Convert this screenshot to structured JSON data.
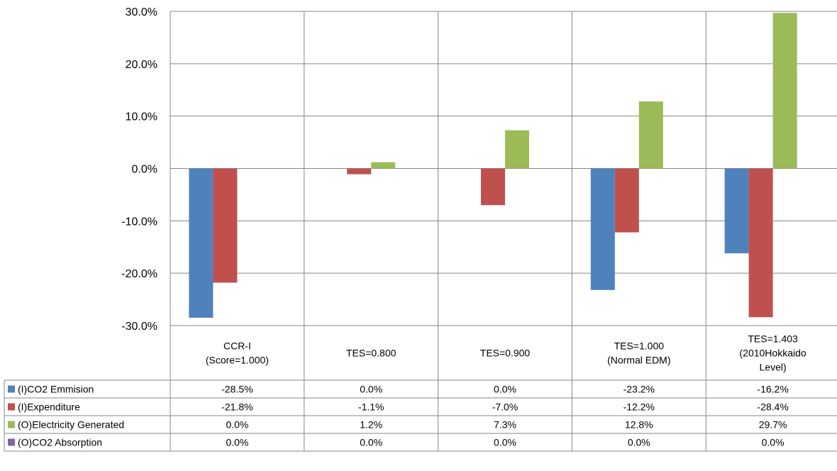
{
  "chart_data": {
    "type": "bar",
    "categories": [
      [
        "CCR-I",
        "(Score=1.000)"
      ],
      [
        "TES=0.800"
      ],
      [
        "TES=0.900"
      ],
      [
        "TES=1.000",
        "(Normal EDM)"
      ],
      [
        "TES=1.403",
        "(2010Hokkaido",
        "Level)"
      ]
    ],
    "ylim": [
      -30,
      30
    ],
    "yticks": [
      30,
      20,
      10,
      0,
      -10,
      -20,
      -30
    ],
    "ytick_labels": [
      "30.0%",
      "20.0%",
      "10.0%",
      "0.0%",
      "-10.0%",
      "-20.0%",
      "-30.0%"
    ],
    "grid": true,
    "legend_placement": "data-table",
    "series": [
      {
        "name": "(I)CO2 Emmision",
        "color": "#4f81bd",
        "values": [
          -28.5,
          0.0,
          0.0,
          -23.2,
          -16.2
        ],
        "labels": [
          "-28.5%",
          "0.0%",
          "0.0%",
          "-23.2%",
          "-16.2%"
        ]
      },
      {
        "name": "(I)Expenditure",
        "color": "#c0504d",
        "values": [
          -21.8,
          -1.1,
          -7.0,
          -12.2,
          -28.4
        ],
        "labels": [
          "-21.8%",
          "-1.1%",
          "-7.0%",
          "-12.2%",
          "-28.4%"
        ]
      },
      {
        "name": "(O)Electricity Generated",
        "color": "#9bbb59",
        "values": [
          0.0,
          1.2,
          7.3,
          12.8,
          29.7
        ],
        "labels": [
          "0.0%",
          "1.2%",
          "7.3%",
          "12.8%",
          "29.7%"
        ]
      },
      {
        "name": "(O)CO2 Absorption",
        "color": "#8064a2",
        "values": [
          0.0,
          0.0,
          0.0,
          0.0,
          0.0
        ],
        "labels": [
          "0.0%",
          "0.0%",
          "0.0%",
          "0.0%",
          "0.0%"
        ]
      }
    ]
  }
}
